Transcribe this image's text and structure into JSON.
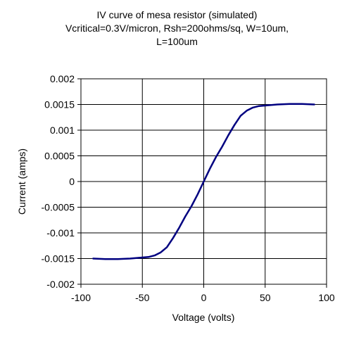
{
  "chart_data": {
    "type": "line",
    "title_lines": [
      "IV curve of mesa resistor (simulated)",
      "Vcritical=0.3V/micron, Rsh=200ohms/sq, W=10um,",
      "L=100um"
    ],
    "xlabel": "Voltage (volts)",
    "ylabel": "Current (amps)",
    "xlim": [
      -100,
      100
    ],
    "ylim": [
      -0.002,
      0.002
    ],
    "x_ticks": [
      "-100",
      "-50",
      "0",
      "50",
      "100"
    ],
    "x_tick_values": [
      -100,
      -50,
      0,
      50,
      100
    ],
    "y_ticks": [
      "0.002",
      "0.0015",
      "0.001",
      "0.0005",
      "0",
      "-0.0005",
      "-0.001",
      "-0.0015",
      "-0.002"
    ],
    "y_tick_values": [
      0.002,
      0.0015,
      0.001,
      0.0005,
      0,
      -0.0005,
      -0.001,
      -0.0015,
      -0.002
    ],
    "grid": true,
    "legend": "none",
    "series": [
      {
        "color": "#000080",
        "x": [
          -90,
          -80,
          -70,
          -60,
          -50,
          -45,
          -40,
          -35,
          -30,
          -25,
          -20,
          -15,
          -10,
          -5,
          0,
          5,
          10,
          15,
          20,
          25,
          30,
          35,
          40,
          45,
          50,
          60,
          70,
          80,
          90
        ],
        "y": [
          -0.0015,
          -0.00151,
          -0.00151,
          -0.0015,
          -0.00148,
          -0.00147,
          -0.00144,
          -0.00138,
          -0.00128,
          -0.0011,
          -0.0009,
          -0.00068,
          -0.00048,
          -0.00025,
          0.0,
          0.00025,
          0.00048,
          0.00068,
          0.0009,
          0.0011,
          0.00128,
          0.00138,
          0.00144,
          0.00147,
          0.00148,
          0.0015,
          0.00151,
          0.00151,
          0.0015
        ]
      }
    ]
  }
}
